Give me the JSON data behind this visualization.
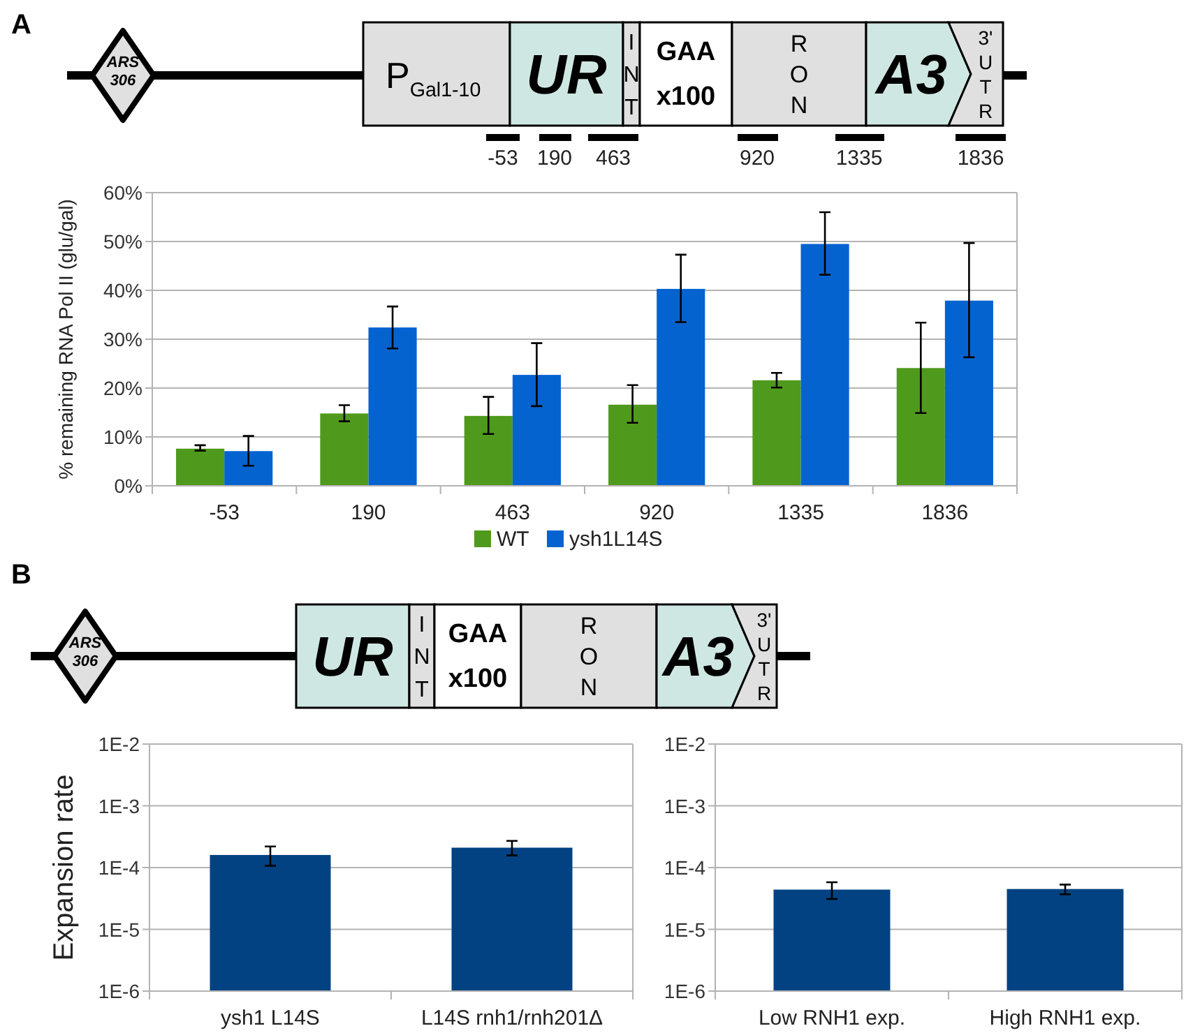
{
  "chart_data": [
    {
      "type": "bar",
      "categories": [
        "-53",
        "190",
        "463",
        "920",
        "1335",
        "1836"
      ],
      "ylabel": "% remaining RNA Pol II (glu/gal)",
      "ylim": [
        0,
        60
      ],
      "yticks": [
        {
          "value": 0,
          "label": "0%"
        },
        {
          "value": 10,
          "label": "10%"
        },
        {
          "value": 20,
          "label": "20%"
        },
        {
          "value": 30,
          "label": "30%"
        },
        {
          "value": 40,
          "label": "40%"
        },
        {
          "value": 50,
          "label": "50%"
        },
        {
          "value": 60,
          "label": "60%"
        }
      ],
      "grid": "y",
      "legend": "bottom",
      "series": [
        {
          "name": "WT",
          "color": "#4f9a1c",
          "values": [
            7.6,
            14.8,
            14.3,
            16.6,
            21.6,
            24.1
          ],
          "errors": [
            [
              7.2,
              8.3
            ],
            [
              13.2,
              16.5
            ],
            [
              10.6,
              18.2
            ],
            [
              12.9,
              20.6
            ],
            [
              20.1,
              23.1
            ],
            [
              14.9,
              33.4
            ]
          ]
        },
        {
          "name": "ysh1L14S",
          "color": "#0563d0",
          "values": [
            7.1,
            32.4,
            22.7,
            40.3,
            49.5,
            37.9
          ],
          "errors": [
            [
              4.1,
              10.2
            ],
            [
              28.1,
              36.7
            ],
            [
              16.3,
              29.2
            ],
            [
              33.5,
              47.3
            ],
            [
              43.2,
              56.0
            ],
            [
              26.3,
              49.7
            ]
          ]
        }
      ],
      "annotations": [
        "A",
        "ARS 306",
        "P$_{Gal1-10}$",
        "UR",
        "INT",
        "GAA x100",
        "RON",
        "A3",
        "3' UTR"
      ]
    },
    {
      "type": "bar",
      "categories": [
        "ysh1 L14S",
        "L14S rnh1/rnh201Δ"
      ],
      "ylabel": "Expansion rate",
      "log": true,
      "ylim": [
        1e-06,
        0.01
      ],
      "yticks": [
        {
          "value": 1e-06,
          "label": "1E-6"
        },
        {
          "value": 1e-05,
          "label": "1E-5"
        },
        {
          "value": 0.0001,
          "label": "1E-4"
        },
        {
          "value": 0.001,
          "label": "1E-3"
        },
        {
          "value": 0.01,
          "label": "1E-2"
        }
      ],
      "grid": "y",
      "legend": false,
      "series": [
        {
          "color": "#024283",
          "values": [
            0.00016,
            0.00021
          ],
          "errors": [
            [
              0.000107,
              0.00022
            ],
            [
              0.000157,
              0.00027
            ]
          ]
        }
      ],
      "annotations": [
        "B",
        "ARS 306",
        "UR",
        "INT",
        "GAA x100",
        "RON",
        "A3",
        "3' UTR"
      ]
    },
    {
      "type": "bar",
      "categories": [
        "Low RNH1 exp.",
        "High RNH1 exp."
      ],
      "log": true,
      "ylim": [
        1e-06,
        0.01
      ],
      "yticks": [
        {
          "value": 1e-06,
          "label": "1E-6"
        },
        {
          "value": 1e-05,
          "label": "1E-5"
        },
        {
          "value": 0.0001,
          "label": "1E-4"
        },
        {
          "value": 0.001,
          "label": "1E-3"
        },
        {
          "value": 0.01,
          "label": "1E-2"
        }
      ],
      "grid": "y",
      "legend": false,
      "series": [
        {
          "color": "#024283",
          "values": [
            4.4e-05,
            4.5e-05
          ],
          "errors": [
            [
              3.1e-05,
              5.8e-05
            ],
            [
              3.7e-05,
              5.3e-05
            ]
          ]
        }
      ]
    }
  ]
}
